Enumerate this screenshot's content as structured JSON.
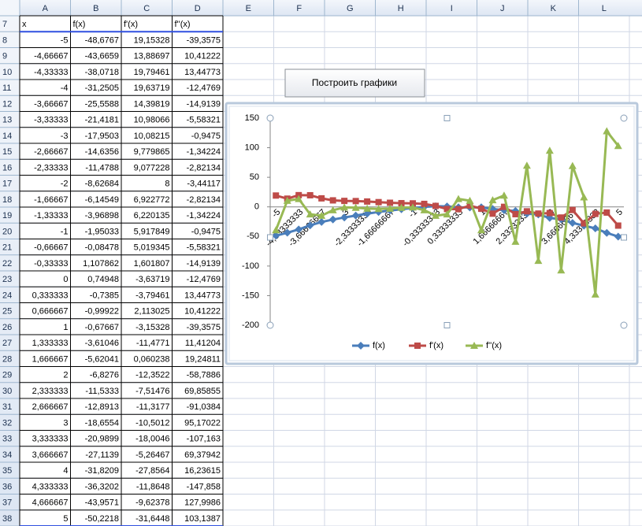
{
  "sheet": {
    "columns": [
      "A",
      "B",
      "C",
      "D",
      "E",
      "F",
      "G",
      "H",
      "I",
      "J",
      "K",
      "L"
    ],
    "row_numbers": [
      7,
      8,
      9,
      10,
      11,
      12,
      13,
      14,
      15,
      16,
      17,
      18,
      19,
      20,
      21,
      22,
      23,
      24,
      25,
      26,
      27,
      28,
      29,
      30,
      31,
      32,
      33,
      34,
      35,
      36,
      37,
      38
    ],
    "header": [
      "x",
      "f(x)",
      "f'(x)",
      "f''(x)"
    ],
    "rows": [
      [
        "-5",
        "-48,6767",
        "19,15328",
        "-39,3575"
      ],
      [
        "-4,66667",
        "-43,6659",
        "13,88697",
        "10,41222"
      ],
      [
        "-4,33333",
        "-38,0718",
        "19,79461",
        "13,44773"
      ],
      [
        "-4",
        "-31,2505",
        "19,63719",
        "-12,4769"
      ],
      [
        "-3,66667",
        "-25,5588",
        "14,39819",
        "-14,9139"
      ],
      [
        "-3,33333",
        "-21,4181",
        "10,98066",
        "-5,58321"
      ],
      [
        "-3",
        "-17,9503",
        "10,08215",
        "-0,9475"
      ],
      [
        "-2,66667",
        "-14,6356",
        "9,779865",
        "-1,34224"
      ],
      [
        "-2,33333",
        "-11,4788",
        "9,077228",
        "-2,82134"
      ],
      [
        "-2",
        "-8,62684",
        "8",
        "-3,44117"
      ],
      [
        "-1,66667",
        "-6,14549",
        "6,922772",
        "-2,82134"
      ],
      [
        "-1,33333",
        "-3,96898",
        "6,220135",
        "-1,34224"
      ],
      [
        "-1",
        "-1,95033",
        "5,917849",
        "-0,9475"
      ],
      [
        "-0,66667",
        "-0,08478",
        "5,019345",
        "-5,58321"
      ],
      [
        "-0,33333",
        "1,107862",
        "1,601807",
        "-14,9139"
      ],
      [
        "0",
        "0,74948",
        "-3,63719",
        "-12,4769"
      ],
      [
        "0,333333",
        "-0,7385",
        "-3,79461",
        "13,44773"
      ],
      [
        "0,666667",
        "-0,99922",
        "2,113025",
        "10,41222"
      ],
      [
        "1",
        "-0,67667",
        "-3,15328",
        "-39,3575"
      ],
      [
        "1,333333",
        "-3,61046",
        "-11,4771",
        "11,41204"
      ],
      [
        "1,666667",
        "-5,62041",
        "0,060238",
        "19,24811"
      ],
      [
        "2",
        "-6,8276",
        "-12,3522",
        "-58,7886"
      ],
      [
        "2,333333",
        "-11,5333",
        "-7,51476",
        "69,85855"
      ],
      [
        "2,666667",
        "-12,8913",
        "-11,3177",
        "-91,0384"
      ],
      [
        "3",
        "-18,6554",
        "-10,5012",
        "95,17022"
      ],
      [
        "3,333333",
        "-20,9899",
        "-18,0046",
        "-107,163"
      ],
      [
        "3,666667",
        "-27,1139",
        "-5,26467",
        "69,37942"
      ],
      [
        "4",
        "-31,8209",
        "-27,8564",
        "16,23615"
      ],
      [
        "4,333333",
        "-36,3202",
        "-11,8648",
        "-147,858"
      ],
      [
        "4,666667",
        "-43,9571",
        "-9,62378",
        "127,9986"
      ],
      [
        "5",
        "-50,2218",
        "-31,6448",
        "103,1387"
      ]
    ],
    "button": "Построить графики"
  },
  "chart_data": {
    "type": "line",
    "categories": [
      "-5",
      null,
      "-4,33333333",
      null,
      "-3,66666667",
      null,
      "-3",
      null,
      "-2,33333333",
      null,
      "-1,66666667",
      null,
      "-1",
      null,
      "-0,33333333",
      null,
      "0,33333333",
      null,
      "1",
      null,
      "1,66666667",
      null,
      "2,33333333",
      null,
      "3",
      null,
      "3,66666667",
      null,
      "4,33333333",
      null,
      "5"
    ],
    "series": [
      {
        "name": "f(x)",
        "color": "#4a7ebb",
        "marker": "diamond",
        "values": [
          -48.6767,
          -43.6659,
          -38.0718,
          -31.2505,
          -25.5588,
          -21.4181,
          -17.9503,
          -14.6356,
          -11.4788,
          -8.62684,
          -6.14549,
          -3.96898,
          -1.95033,
          -0.08478,
          1.107862,
          0.74948,
          -0.7385,
          -0.99922,
          -0.67667,
          -3.61046,
          -5.62041,
          -6.8276,
          -11.5333,
          -12.8913,
          -18.6554,
          -20.9899,
          -27.1139,
          -31.8209,
          -36.3202,
          -43.9571,
          -50.2218
        ]
      },
      {
        "name": "f'(x)",
        "color": "#be4b48",
        "marker": "square",
        "values": [
          19.15328,
          13.88697,
          19.79461,
          19.63719,
          14.39819,
          10.98066,
          10.08215,
          9.779865,
          9.077228,
          8,
          6.922772,
          6.220135,
          5.917849,
          5.019345,
          1.601807,
          -3.63719,
          -3.79461,
          2.113025,
          -3.15328,
          -11.4771,
          0.060238,
          -12.3522,
          -7.51476,
          -11.3177,
          -10.5012,
          -18.0046,
          -5.26467,
          -27.8564,
          -11.8648,
          -9.62378,
          -31.6448
        ]
      },
      {
        "name": "f''(x)",
        "color": "#98b954",
        "marker": "triangle",
        "values": [
          -39.3575,
          10.41222,
          13.44773,
          -12.4769,
          -14.9139,
          -5.58321,
          -0.9475,
          -1.34224,
          -2.82134,
          -3.44117,
          -2.82134,
          -1.34224,
          -0.9475,
          -5.58321,
          -14.9139,
          -12.4769,
          13.44773,
          10.41222,
          -39.3575,
          11.41204,
          19.24811,
          -58.7886,
          69.85855,
          -91.0384,
          95.17022,
          -107.163,
          69.37942,
          16.23615,
          -147.858,
          127.9986,
          103.1387
        ]
      }
    ],
    "ylim": [
      -200,
      150
    ],
    "yticks": [
      -200,
      -150,
      -100,
      -50,
      0,
      50,
      100,
      150
    ],
    "grid": false,
    "legend": "bottom"
  }
}
